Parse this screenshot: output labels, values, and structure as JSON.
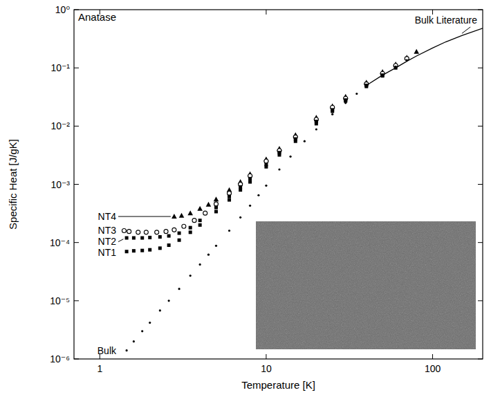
{
  "chart_data": {
    "type": "scatter",
    "title": "Anatase",
    "x_label": "Temperature [K]",
    "y_label": "Specific Heat [J/gK]",
    "log": true,
    "grid": false,
    "xlim": [
      0.7,
      200
    ],
    "ylim": [
      1e-06,
      1
    ],
    "xticks": [
      1,
      10,
      100
    ],
    "yticks": [
      {
        "value": 1e-06,
        "label": "10⁻⁶"
      },
      {
        "value": 1e-05,
        "label": "10⁻⁵"
      },
      {
        "value": 0.0001,
        "label": "10⁻⁴"
      },
      {
        "value": 0.001,
        "label": "10⁻³"
      },
      {
        "value": 0.01,
        "label": "10⁻²"
      },
      {
        "value": 0.1,
        "label": "10⁻¹"
      },
      {
        "value": 1,
        "label": "10⁰"
      }
    ],
    "series": [
      {
        "name": "NT4",
        "color": "#000000",
        "marker": "triangle",
        "x": [
          2.8,
          3.1,
          3.5,
          4,
          4.5,
          5,
          6,
          7,
          8,
          10,
          12,
          15,
          20,
          25,
          30,
          40,
          50,
          60,
          70,
          80
        ],
        "values": [
          0.00028,
          0.00029,
          0.00032,
          0.00038,
          0.00045,
          0.00055,
          0.0008,
          0.0011,
          0.0015,
          0.0027,
          0.0041,
          0.007,
          0.014,
          0.022,
          0.032,
          0.056,
          0.085,
          0.115,
          0.15,
          0.19
        ]
      },
      {
        "name": "NT3",
        "color": "#000000",
        "marker": "circle-open",
        "x": [
          1.4,
          1.5,
          1.7,
          1.9,
          2.2,
          2.5,
          2.8,
          3.2,
          3.7,
          4.3,
          5,
          6,
          7,
          8,
          10,
          12,
          15,
          20,
          25,
          30,
          40,
          50,
          60,
          70
        ],
        "values": [
          0.00016,
          0.000155,
          0.00015,
          0.00015,
          0.00015,
          0.000155,
          0.000165,
          0.00019,
          0.00024,
          0.00032,
          0.00046,
          0.0007,
          0.001,
          0.0014,
          0.0025,
          0.0038,
          0.0065,
          0.013,
          0.021,
          0.03,
          0.053,
          0.08,
          0.11,
          0.145
        ]
      },
      {
        "name": "NT2",
        "color": "#000000",
        "marker": "square",
        "x": [
          1.45,
          1.6,
          1.8,
          2,
          2.3,
          2.6,
          3,
          3.5,
          4,
          5,
          6,
          7,
          8,
          10,
          12,
          15,
          20,
          25,
          30,
          40,
          50
        ],
        "values": [
          0.00012,
          0.00012,
          0.00012,
          0.000122,
          0.000125,
          0.00013,
          0.000145,
          0.00018,
          0.00024,
          0.0004,
          0.00062,
          0.0009,
          0.00125,
          0.0022,
          0.0035,
          0.006,
          0.012,
          0.019,
          0.028,
          0.05,
          0.075
        ]
      },
      {
        "name": "NT1",
        "color": "#000000",
        "marker": "square",
        "x": [
          1.45,
          1.6,
          1.8,
          2,
          2.3,
          2.6,
          3,
          3.5,
          4,
          5,
          6,
          7,
          8,
          10,
          12,
          15,
          20,
          25,
          30,
          40,
          50,
          60
        ],
        "values": [
          7e-05,
          7.2e-05,
          7.3e-05,
          7.5e-05,
          8e-05,
          9e-05,
          0.00011,
          0.00015,
          0.0002,
          0.00034,
          0.00054,
          0.0008,
          0.0011,
          0.002,
          0.0032,
          0.0055,
          0.011,
          0.018,
          0.027,
          0.048,
          0.073,
          0.1
        ]
      },
      {
        "name": "Bulk",
        "color": "#000000",
        "marker": "dot",
        "x": [
          1.45,
          1.6,
          1.8,
          2,
          2.3,
          2.6,
          3,
          3.5,
          4,
          4.5,
          5,
          6,
          7,
          8,
          9,
          10,
          12,
          14,
          17,
          20,
          25,
          30,
          35,
          40,
          50,
          60,
          70
        ],
        "values": [
          1.4e-06,
          2e-06,
          3e-06,
          4.2e-06,
          6.8e-06,
          1e-05,
          1.6e-05,
          2.7e-05,
          4.2e-05,
          6.2e-05,
          8.8e-05,
          0.00016,
          0.00027,
          0.00043,
          0.00065,
          0.00095,
          0.0018,
          0.003,
          0.0055,
          0.0088,
          0.016,
          0.025,
          0.036,
          0.048,
          0.075,
          0.105,
          0.135
        ]
      },
      {
        "name": "Bulk Literature",
        "color": "#000000",
        "type": "line",
        "line_style": "solid",
        "x": [
          40,
          50,
          60,
          70,
          80,
          100,
          120,
          150,
          200
        ],
        "values": [
          0.05,
          0.075,
          0.1,
          0.13,
          0.16,
          0.22,
          0.28,
          0.36,
          0.48
        ]
      }
    ]
  }
}
